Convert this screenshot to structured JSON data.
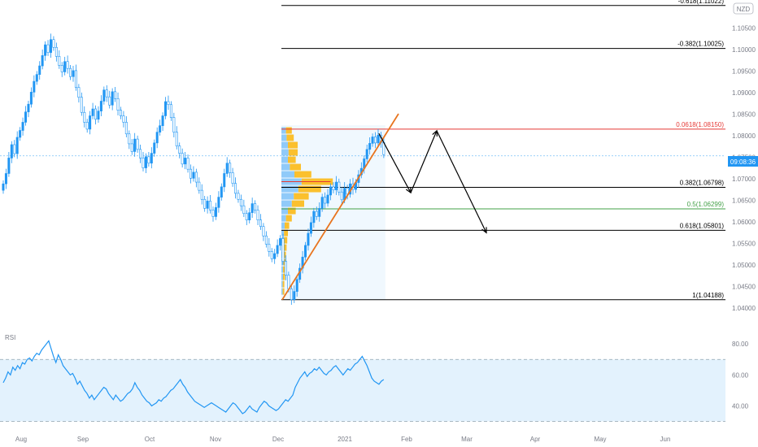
{
  "currency_badge": "NZD",
  "price_badge": "09:08:36",
  "colors": {
    "up": "#2196f3",
    "rsi_line": "#2196f3",
    "rsi_band": "#e3f2fd",
    "trend": "#e8741e",
    "fib_top": "#e53935",
    "fib_mid": "#43a047",
    "profile_up": "#fbc02d",
    "profile_down": "#90caf9"
  },
  "chart_data": [
    {
      "type": "candlestick",
      "title": "",
      "ylim": [
        1.0375,
        1.1115
      ],
      "y_ticks": [
        "1.04000",
        "1.04500",
        "1.05000",
        "1.05500",
        "1.06000",
        "1.06500",
        "1.07000",
        "1.07500",
        "1.08000",
        "1.08500",
        "1.09000",
        "1.09500",
        "1.10000",
        "1.10500"
      ],
      "x_ticks": [
        "Aug",
        "Sep",
        "Oct",
        "Nov",
        "Dec",
        "2021",
        "Feb",
        "Mar",
        "Apr",
        "May",
        "Jun"
      ],
      "current_price": 1.0753,
      "fib_levels": [
        {
          "label": "-0.618(1.11022)",
          "value": 1.11022
        },
        {
          "label": "-0.382(1.10025)",
          "value": 1.10025
        },
        {
          "label": "0.0618(1.08150)",
          "value": 1.0815
        },
        {
          "label": "0.382(1.06798)",
          "value": 1.06798
        },
        {
          "label": "0.5(1.06299)",
          "value": 1.06299
        },
        {
          "label": "0.618(1.05801)",
          "value": 1.05801
        },
        {
          "label": "1(1.04188)",
          "value": 1.04188
        }
      ],
      "closes": [
        1.0688,
        1.0712,
        1.0748,
        1.0779,
        1.0758,
        1.0796,
        1.0812,
        1.0831,
        1.0855,
        1.0873,
        1.0901,
        1.0926,
        1.0942,
        1.0962,
        1.0986,
        1.1011,
        1.0993,
        1.1023,
        1.1005,
        1.0984,
        1.0963,
        1.0948,
        1.0972,
        1.0956,
        1.0937,
        1.0951,
        1.0912,
        1.0889,
        1.0854,
        1.0831,
        1.0815,
        1.0846,
        1.0862,
        1.0838,
        1.0857,
        1.088,
        1.0906,
        1.089,
        1.0871,
        1.0902,
        1.0886,
        1.0859,
        1.0846,
        1.0831,
        1.0804,
        1.0781,
        1.0763,
        1.0792,
        1.0768,
        1.0748,
        1.0725,
        1.0751,
        1.0736,
        1.0759,
        1.0783,
        1.0808,
        1.0823,
        1.0846,
        1.0879,
        1.0872,
        1.0842,
        1.0808,
        1.0776,
        1.0759,
        1.0734,
        1.0748,
        1.0722,
        1.0701,
        1.0715,
        1.0692,
        1.0673,
        1.0652,
        1.0631,
        1.0648,
        1.0627,
        1.0612,
        1.0633,
        1.0657,
        1.0681,
        1.0712,
        1.0736,
        1.0714,
        1.0689,
        1.0666,
        1.0652,
        1.0637,
        1.0619,
        1.0604,
        1.0621,
        1.0642,
        1.0627,
        1.0604,
        1.0589,
        1.0567,
        1.0548,
        1.0531,
        1.0514,
        1.0526,
        1.0545,
        1.0561,
        1.0508,
        1.0476,
        1.0444,
        1.0419,
        1.0438,
        1.0466,
        1.0492,
        1.0518,
        1.0545,
        1.0573,
        1.0598,
        1.0624,
        1.0612,
        1.0631,
        1.0657,
        1.0643,
        1.0662,
        1.0681,
        1.0674,
        1.0692,
        1.0669,
        1.0651,
        1.0678,
        1.0664,
        1.0688,
        1.0675,
        1.0691,
        1.0709,
        1.0724,
        1.0746,
        1.0768,
        1.0782,
        1.0797,
        1.0783,
        1.0801,
        1.0784,
        1.0756
      ],
      "profile": [
        {
          "price": 1.0812,
          "up": 0.18,
          "down": 0.14
        },
        {
          "price": 1.0795,
          "up": 0.22,
          "down": 0.16
        },
        {
          "price": 1.0778,
          "up": 0.3,
          "down": 0.2
        },
        {
          "price": 1.0761,
          "up": 0.28,
          "down": 0.22
        },
        {
          "price": 1.0744,
          "up": 0.24,
          "down": 0.2
        },
        {
          "price": 1.0727,
          "up": 0.34,
          "down": 0.26
        },
        {
          "price": 1.071,
          "up": 0.52,
          "down": 0.4
        },
        {
          "price": 1.0693,
          "up": 0.96,
          "down": 0.62
        },
        {
          "price": 1.0676,
          "up": 0.7,
          "down": 0.52
        },
        {
          "price": 1.0659,
          "up": 0.46,
          "down": 0.38
        },
        {
          "price": 1.0642,
          "up": 0.38,
          "down": 0.32
        },
        {
          "price": 1.0625,
          "up": 0.24,
          "down": 0.2
        },
        {
          "price": 1.0608,
          "up": 0.18,
          "down": 0.14
        },
        {
          "price": 1.0591,
          "up": 0.14,
          "down": 0.1
        },
        {
          "price": 1.0574,
          "up": 0.12,
          "down": 0.08
        },
        {
          "price": 1.0557,
          "up": 0.1,
          "down": 0.08
        },
        {
          "price": 1.054,
          "up": 0.1,
          "down": 0.06
        },
        {
          "price": 1.0523,
          "up": 0.08,
          "down": 0.06
        },
        {
          "price": 1.0506,
          "up": 0.08,
          "down": 0.06
        },
        {
          "price": 1.0489,
          "up": 0.06,
          "down": 0.05
        },
        {
          "price": 1.0472,
          "up": 0.06,
          "down": 0.05
        },
        {
          "price": 1.0455,
          "up": 0.05,
          "down": 0.04
        },
        {
          "price": 1.0438,
          "up": 0.05,
          "down": 0.04
        }
      ],
      "poc_price": 1.0693,
      "projection": [
        {
          "x": 1.0,
          "price": 1.0805
        },
        {
          "x": 1.0,
          "price": 1.0675
        },
        {
          "x": 1.0,
          "price": 1.0815
        },
        {
          "x": 1.0,
          "price": 1.058
        }
      ]
    },
    {
      "type": "line",
      "title": "RSI",
      "ylim": [
        25,
        88
      ],
      "y_ticks": [
        "80.00",
        "60.00",
        "40.00"
      ],
      "band": [
        30,
        70
      ],
      "values": [
        55,
        58,
        62,
        60,
        65,
        63,
        66,
        64,
        68,
        67,
        70,
        71,
        69,
        72,
        74,
        73,
        76,
        78,
        80,
        82,
        77,
        72,
        68,
        73,
        70,
        66,
        64,
        62,
        60,
        61,
        58,
        54,
        56,
        53,
        50,
        48,
        45,
        47,
        44,
        46,
        48,
        50,
        52,
        51,
        48,
        46,
        44,
        47,
        45,
        43,
        44,
        46,
        48,
        49,
        51,
        55,
        52,
        50,
        47,
        45,
        43,
        42,
        40,
        41,
        42,
        44,
        43,
        45,
        46,
        48,
        50,
        51,
        53,
        55,
        57,
        54,
        52,
        49,
        47,
        45,
        43,
        42,
        41,
        40,
        39,
        40,
        41,
        42,
        41,
        40,
        39,
        38,
        37,
        36,
        38,
        40,
        42,
        41,
        39,
        37,
        35,
        36,
        38,
        40,
        38,
        37,
        36,
        39,
        41,
        43,
        42,
        40,
        39,
        38,
        37,
        38,
        40,
        42,
        44,
        43,
        45,
        47,
        52,
        55,
        58,
        60,
        62,
        59,
        61,
        62,
        64,
        63,
        65,
        63,
        61,
        60,
        62,
        63,
        65,
        66,
        64,
        62,
        60,
        62,
        64,
        63,
        65,
        67,
        68,
        70,
        72,
        69,
        66,
        62,
        58,
        56,
        55,
        54,
        56,
        57
      ]
    }
  ]
}
